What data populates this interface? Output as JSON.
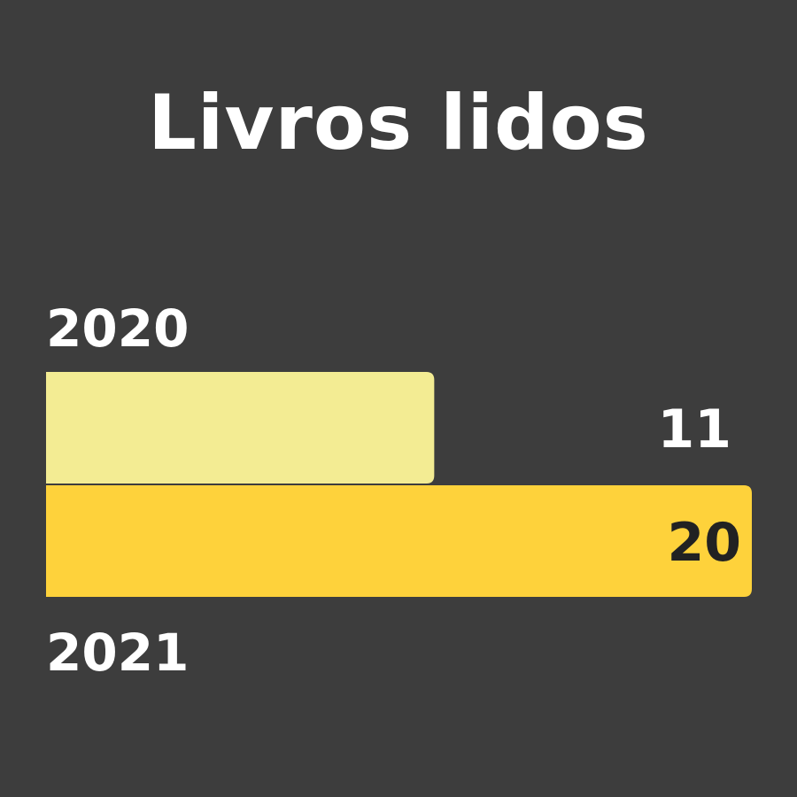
{
  "chart_data": {
    "type": "bar",
    "orientation": "horizontal",
    "title": "Livros lidos",
    "categories": [
      "2020",
      "2021"
    ],
    "values": [
      11,
      20
    ],
    "xlim": [
      0,
      20
    ],
    "grid": false,
    "legend": "none",
    "colors": {
      "background": "#3d3d3d",
      "bar_2020": "#f3ec93",
      "bar_2021": "#fed23b",
      "text_light": "#ffffff",
      "text_dark": "#222222"
    }
  }
}
